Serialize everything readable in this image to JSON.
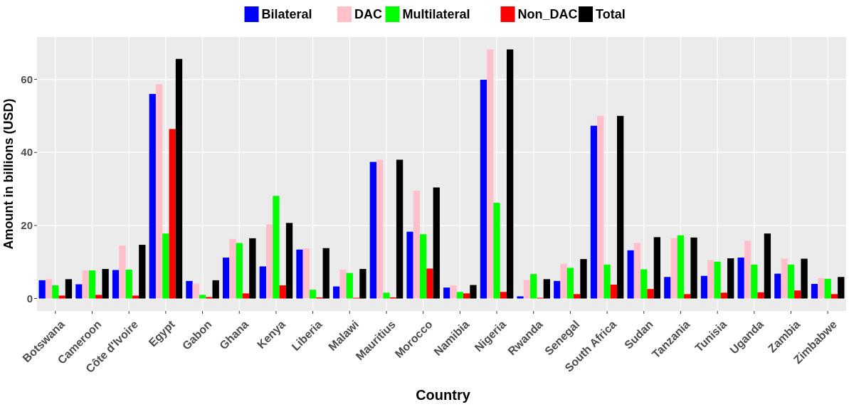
{
  "chart_data": {
    "type": "bar",
    "xlabel": "Country",
    "ylabel": "Amount in billions (USD)",
    "categories": [
      "Botswana",
      "Cameroon",
      "Côte d'Ivoire",
      "Egypt",
      "Gabon",
      "Ghana",
      "Kenya",
      "Liberia",
      "Malawi",
      "Mauritius",
      "Morocco",
      "Namibia",
      "Nigeria",
      "Rwanda",
      "Senegal",
      "South Africa",
      "Sudan",
      "Tanzania",
      "Tunisia",
      "Uganda",
      "Zambia",
      "Zimbabwe"
    ],
    "series": [
      {
        "name": "Bilateral",
        "color": "#0000ff",
        "values": [
          5,
          3.9,
          7.8,
          56,
          4.8,
          11.2,
          8.8,
          13.4,
          3.3,
          37.4,
          18.3,
          3,
          59.9,
          0.6,
          4.8,
          47.3,
          13.2,
          5.9,
          6.2,
          11.2,
          6.8,
          4
        ]
      },
      {
        "name": "DAC",
        "color": "#ffc0cb",
        "values": [
          5.3,
          7.7,
          14.5,
          58.7,
          4.1,
          16.3,
          20.3,
          13.7,
          7.9,
          38,
          29.5,
          3.6,
          68.2,
          5.1,
          9.5,
          50,
          15.2,
          16.5,
          10.5,
          15.8,
          10.9,
          5.6
        ]
      },
      {
        "name": "Multilateral",
        "color": "#00ff00",
        "values": [
          3.6,
          7.7,
          7.9,
          17.8,
          1,
          15.2,
          28.1,
          2.4,
          7,
          1.6,
          17.6,
          1.8,
          26.2,
          6.7,
          8.4,
          9.3,
          8,
          17.3,
          10.1,
          9.3,
          9.3,
          5.4
        ]
      },
      {
        "name": "Non_DAC",
        "color": "#ff0000",
        "values": [
          0.8,
          1,
          0.8,
          46.4,
          0.4,
          1.4,
          3.6,
          0.3,
          0.2,
          0.3,
          8.2,
          1.4,
          1.8,
          0.2,
          1.2,
          3.8,
          2.6,
          1.2,
          1.6,
          1.7,
          2.2,
          1.2
        ]
      },
      {
        "name": "Total",
        "color": "#000000",
        "values": [
          5.3,
          8.1,
          14.7,
          65.6,
          5,
          16.5,
          20.7,
          13.8,
          8.1,
          38,
          30.4,
          3.7,
          68.2,
          5.3,
          10.8,
          50,
          16.8,
          16.7,
          11,
          17.8,
          10.9,
          5.9
        ]
      }
    ],
    "ylim": [
      -3.4,
      71.6
    ],
    "yticks": [
      0,
      20,
      40,
      60
    ],
    "grid": true,
    "legend": "top"
  }
}
